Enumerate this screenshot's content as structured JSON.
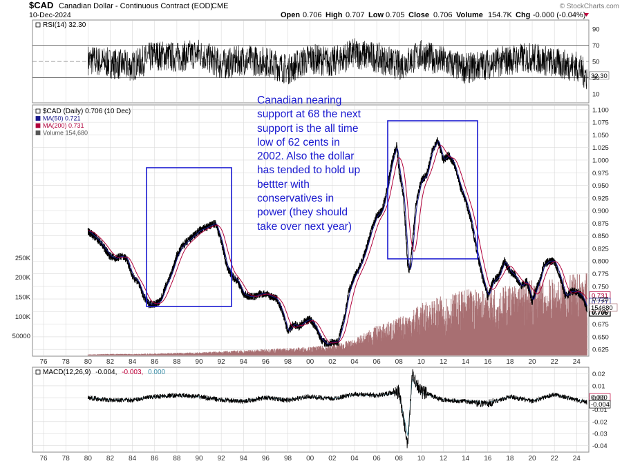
{
  "header": {
    "symbol": "$CAD",
    "name": "Canadian Dollar - Continuous Contract (EOD)",
    "exchange": "CME",
    "date": "10-Dec-2024",
    "watermark": "© StockCharts.com",
    "open_label": "Open",
    "open": "0.706",
    "high_label": "High",
    "high": "0.707",
    "low_label": "Low",
    "low": "0.705",
    "close_label": "Close",
    "close": "0.706",
    "volume_label": "Volume",
    "volume": "154.7K",
    "chg_label": "Chg",
    "chg": "-0.000 (-0.04%)"
  },
  "rsi_panel": {
    "label": "RSI(14) 32.30",
    "last_value": "32.30",
    "ticks": [
      "90",
      "70",
      "50",
      "30",
      "10"
    ]
  },
  "price_panel": {
    "legend": [
      {
        "text": "$CAD (Daily) 0.706 (10 Dec)",
        "color": "#000000"
      },
      {
        "text": "MA(50) 0.721",
        "color": "#1a1a8c"
      },
      {
        "text": "MA(200) 0.731",
        "color": "#b0003a"
      },
      {
        "text": "Volume 154,680",
        "color": "#555555"
      }
    ],
    "price_ticks": [
      "1.100",
      "1.075",
      "1.050",
      "1.025",
      "1.000",
      "0.975",
      "0.950",
      "0.925",
      "0.900",
      "0.875",
      "0.850",
      "0.825",
      "0.800",
      "0.775",
      "0.750",
      "0.725",
      "0.700",
      "0.675",
      "0.650",
      "0.625"
    ],
    "volume_ticks": [
      "250K",
      "200K",
      "150K",
      "100K",
      "50000"
    ],
    "last_price_tags": [
      "0.731",
      "0.721",
      "0.706"
    ],
    "last_volume_tag": "154680"
  },
  "macd_panel": {
    "label_prefix": "MACD(12,26,9)",
    "macd_value": "-0.004,",
    "signal_value": "-0.003,",
    "hist_value": "0.000",
    "ticks": [
      "0.02",
      "0.01",
      "0.00",
      "-0.01",
      "-0.02",
      "-0.03",
      "-0.04"
    ],
    "last_tags": [
      "0.000",
      "-0.004"
    ]
  },
  "annotation": "Canadian nearing\nsupport at 68 the next\nsupport is the all time\nlow of 62 cents in\n2002. Also the dollar\nhas tended to hold up\nbettter with\nconservatives in\npower (they should\ntake over next year)",
  "x_axis_labels": [
    "76",
    "78",
    "80",
    "82",
    "84",
    "86",
    "88",
    "90",
    "92",
    "94",
    "96",
    "98",
    "00",
    "02",
    "04",
    "06",
    "08",
    "10",
    "12",
    "14",
    "16",
    "18",
    "20",
    "22",
    "24"
  ],
  "colors": {
    "accent": "#1a1ad0",
    "price": "#000000",
    "ma50": "#1a1a8c",
    "ma200": "#b0003a",
    "volume": "#a86f72",
    "macd_signal": "#4a9ab0",
    "grid": "#d9d9d9"
  },
  "chart_data": [
    {
      "type": "line",
      "name": "RSI(14)",
      "ylim": [
        0,
        100
      ],
      "reference_lines": [
        70,
        50,
        30
      ],
      "x": [
        1980.0,
        1982.0,
        1984.0,
        1986.0,
        1988.0,
        1990.0,
        1992.0,
        1994.0,
        1996.0,
        1998.0,
        2000.0,
        2002.0,
        2004.0,
        2006.0,
        2008.0,
        2010.0,
        2012.0,
        2014.0,
        2016.0,
        2018.0,
        2020.0,
        2022.0,
        2024.0,
        2024.95
      ],
      "values": [
        52,
        48,
        44,
        58,
        55,
        60,
        46,
        52,
        50,
        40,
        54,
        49,
        60,
        55,
        45,
        58,
        50,
        41,
        47,
        52,
        55,
        48,
        44,
        32.3
      ]
    },
    {
      "type": "line",
      "title": "$CAD (Daily) 0.706 (10 Dec)",
      "ylim": [
        0.613,
        1.108
      ],
      "series": [
        {
          "name": "$CAD",
          "x": [
            1980.0,
            1980.5,
            1981.0,
            1981.5,
            1982.0,
            1982.5,
            1983.0,
            1983.5,
            1984.0,
            1984.5,
            1985.0,
            1985.5,
            1986.0,
            1986.5,
            1987.0,
            1987.5,
            1988.0,
            1988.5,
            1989.0,
            1989.5,
            1990.0,
            1990.5,
            1991.0,
            1991.5,
            1992.0,
            1992.5,
            1993.0,
            1993.5,
            1994.0,
            1994.5,
            1995.0,
            1995.5,
            1996.0,
            1996.5,
            1997.0,
            1997.5,
            1998.0,
            1998.5,
            1999.0,
            1999.5,
            2000.0,
            2000.5,
            2001.0,
            2001.5,
            2002.0,
            2002.5,
            2003.0,
            2003.5,
            2004.0,
            2004.5,
            2005.0,
            2005.5,
            2006.0,
            2006.5,
            2007.0,
            2007.3,
            2007.8,
            2008.0,
            2008.4,
            2008.8,
            2009.0,
            2009.5,
            2010.0,
            2010.5,
            2011.0,
            2011.5,
            2012.0,
            2012.5,
            2013.0,
            2013.5,
            2014.0,
            2014.5,
            2015.0,
            2015.5,
            2016.0,
            2016.5,
            2017.0,
            2017.5,
            2018.0,
            2018.5,
            2019.0,
            2019.5,
            2020.0,
            2020.3,
            2020.8,
            2021.0,
            2021.5,
            2022.0,
            2022.5,
            2023.0,
            2023.5,
            2024.0,
            2024.5,
            2024.95
          ],
          "values": [
            0.86,
            0.85,
            0.84,
            0.825,
            0.81,
            0.805,
            0.81,
            0.805,
            0.77,
            0.76,
            0.73,
            0.715,
            0.715,
            0.72,
            0.75,
            0.775,
            0.81,
            0.83,
            0.84,
            0.85,
            0.86,
            0.865,
            0.87,
            0.875,
            0.84,
            0.79,
            0.77,
            0.76,
            0.735,
            0.73,
            0.73,
            0.735,
            0.735,
            0.73,
            0.725,
            0.7,
            0.66,
            0.675,
            0.67,
            0.68,
            0.685,
            0.67,
            0.645,
            0.635,
            0.64,
            0.64,
            0.68,
            0.74,
            0.77,
            0.79,
            0.82,
            0.86,
            0.89,
            0.9,
            0.95,
            0.99,
            1.03,
            0.98,
            0.93,
            0.79,
            0.78,
            0.91,
            0.96,
            0.97,
            1.02,
            1.04,
            1.0,
            1.01,
            0.99,
            0.95,
            0.92,
            0.88,
            0.82,
            0.77,
            0.73,
            0.76,
            0.77,
            0.8,
            0.78,
            0.77,
            0.75,
            0.76,
            0.72,
            0.74,
            0.77,
            0.79,
            0.8,
            0.8,
            0.77,
            0.73,
            0.74,
            0.74,
            0.73,
            0.706
          ]
        },
        {
          "name": "MA(50)",
          "x": [
            1980.0,
            1982.0,
            1984.0,
            1986.0,
            1988.0,
            1990.0,
            1992.0,
            1994.0,
            1996.0,
            1998.0,
            2000.0,
            2002.0,
            2004.0,
            2006.0,
            2008.0,
            2010.0,
            2012.0,
            2014.0,
            2016.0,
            2018.0,
            2020.0,
            2022.0,
            2024.0,
            2024.95
          ],
          "values": [
            0.855,
            0.815,
            0.775,
            0.72,
            0.805,
            0.855,
            0.845,
            0.74,
            0.735,
            0.665,
            0.685,
            0.64,
            0.765,
            0.885,
            0.99,
            0.955,
            1.0,
            0.93,
            0.73,
            0.775,
            0.725,
            0.795,
            0.735,
            0.721
          ]
        },
        {
          "name": "MA(200)",
          "x": [
            1980.0,
            1982.0,
            1984.0,
            1986.0,
            1988.0,
            1990.0,
            1992.0,
            1994.0,
            1996.0,
            1998.0,
            2000.0,
            2002.0,
            2004.0,
            2006.0,
            2008.0,
            2010.0,
            2012.0,
            2014.0,
            2016.0,
            2018.0,
            2020.0,
            2022.0,
            2024.0,
            2024.95
          ],
          "values": [
            0.85,
            0.82,
            0.785,
            0.725,
            0.795,
            0.85,
            0.855,
            0.75,
            0.735,
            0.675,
            0.685,
            0.645,
            0.755,
            0.875,
            0.985,
            0.95,
            1.0,
            0.94,
            0.745,
            0.775,
            0.735,
            0.79,
            0.74,
            0.731
          ]
        }
      ]
    },
    {
      "type": "bar",
      "name": "Volume",
      "ylim": [
        0,
        300000
      ],
      "x": [
        1980,
        1982,
        1984,
        1986,
        1988,
        1990,
        1992,
        1994,
        1996,
        1998,
        2000,
        2002,
        2004,
        2006,
        2008,
        2010,
        2012,
        2014,
        2016,
        2018,
        2020,
        2022,
        2024
      ],
      "values": [
        2000,
        3000,
        3000,
        4000,
        5000,
        6000,
        8000,
        10000,
        12000,
        14000,
        16000,
        20000,
        30000,
        55000,
        70000,
        95000,
        110000,
        120000,
        125000,
        130000,
        140000,
        140000,
        150000
      ]
    },
    {
      "type": "line",
      "name": "MACD(12,26,9)",
      "ylim": [
        -0.045,
        0.025
      ],
      "x": [
        1980.0,
        1982.0,
        1984.0,
        1986.0,
        1988.0,
        1990.0,
        1992.0,
        1994.0,
        1996.0,
        1998.0,
        2000.0,
        2002.0,
        2004.0,
        2006.0,
        2008.0,
        2008.8,
        2009.2,
        2010.0,
        2012.0,
        2014.0,
        2016.0,
        2018.0,
        2020.0,
        2022.0,
        2024.0,
        2024.95
      ],
      "values": [
        0.0,
        -0.002,
        -0.002,
        0.001,
        0.002,
        0.001,
        -0.002,
        -0.003,
        0.0,
        -0.002,
        0.001,
        -0.001,
        0.003,
        0.002,
        0.005,
        -0.04,
        0.02,
        0.005,
        -0.002,
        -0.003,
        -0.005,
        0.001,
        -0.003,
        0.003,
        -0.002,
        -0.004
      ]
    }
  ]
}
